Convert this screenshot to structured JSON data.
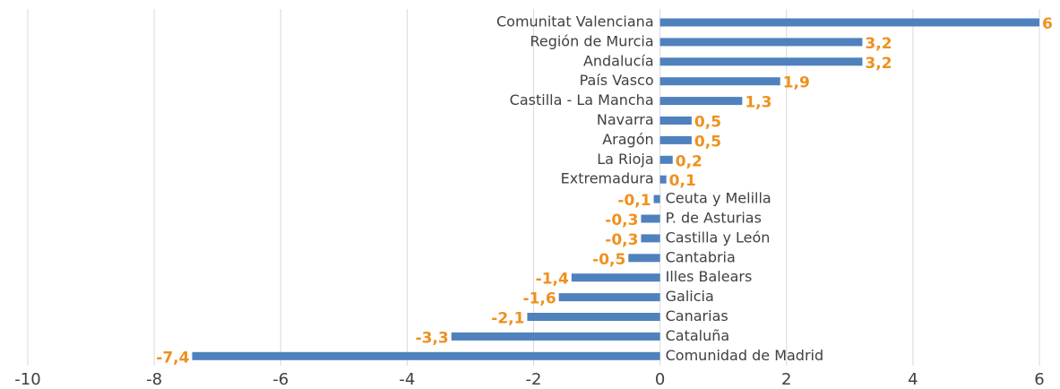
{
  "chart_data": {
    "type": "bar",
    "orientation": "horizontal",
    "categories": [
      "Comunitat Valenciana",
      "Región de Murcia",
      "Andalucía",
      "País Vasco",
      "Castilla - La Mancha",
      "Navarra",
      "Aragón",
      "La Rioja",
      "Extremadura",
      "Ceuta y Melilla",
      "P. de Asturias",
      "Castilla y León",
      "Cantabria",
      "Illes Balears",
      "Galicia",
      "Canarias",
      "Cataluña",
      "Comunidad de Madrid"
    ],
    "values": [
      6,
      3.2,
      3.2,
      1.9,
      1.3,
      0.5,
      0.5,
      0.2,
      0.1,
      -0.1,
      -0.3,
      -0.3,
      -0.5,
      -1.4,
      -1.6,
      -2.1,
      -3.3,
      -7.4
    ],
    "value_labels": [
      "6",
      "3,2",
      "3,2",
      "1,9",
      "1,3",
      "0,5",
      "0,5",
      "0,2",
      "0,1",
      "-0,1",
      "-0,3",
      "-0,3",
      "-0,5",
      "-1,4",
      "-1,6",
      "-2,1",
      "-3,3",
      "-7,4"
    ],
    "color": "#4f81bd",
    "label_color": "#f0901e",
    "xlim": [
      -10,
      6
    ],
    "xticks": [
      -10,
      -8,
      -6,
      -4,
      -2,
      0,
      2,
      4,
      6
    ],
    "grid": true
  }
}
